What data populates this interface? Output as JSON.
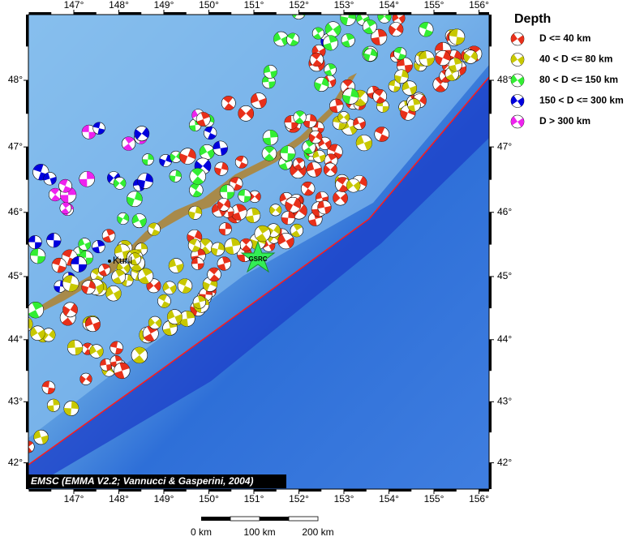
{
  "map": {
    "lon_ticks": [
      {
        "value": 147,
        "label": "147°"
      },
      {
        "value": 148,
        "label": "148°"
      },
      {
        "value": 149,
        "label": "149°"
      },
      {
        "value": 150,
        "label": "150°"
      },
      {
        "value": 151,
        "label": "151°"
      },
      {
        "value": 152,
        "label": "152°"
      },
      {
        "value": 153,
        "label": "153°"
      },
      {
        "value": 154,
        "label": "154°"
      },
      {
        "value": 155,
        "label": "155°"
      },
      {
        "value": 156,
        "label": "156°"
      }
    ],
    "lat_ticks": [
      {
        "value": 42,
        "label": "42°"
      },
      {
        "value": 43,
        "label": "43°"
      },
      {
        "value": 44,
        "label": "44°"
      },
      {
        "value": 45,
        "label": "45°"
      },
      {
        "value": 46,
        "label": "46°"
      },
      {
        "value": 47,
        "label": "47°"
      },
      {
        "value": 48,
        "label": "48°"
      }
    ],
    "places": [
      "Kuril",
      "GSRC"
    ],
    "credit": "EMSC (EMMA V2.2; Vannucci & Gasperini, 2004)",
    "scale_labels": [
      "0 km",
      "100 km",
      "200 km"
    ]
  },
  "legend": {
    "title": "Depth",
    "entries": [
      "D <= 40 km",
      "40 < D <= 80 km",
      "80 < D <= 150 km",
      "150 < D <= 300 km",
      "D > 300 km"
    ]
  }
}
